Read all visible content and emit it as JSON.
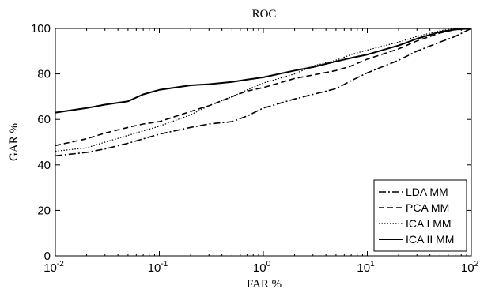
{
  "chart_data": {
    "type": "line",
    "title": "ROC",
    "xlabel": "FAR %",
    "ylabel": "GAR %",
    "xscale": "log",
    "xlim": [
      0.01,
      100
    ],
    "ylim": [
      0,
      100
    ],
    "x_ticks": [
      {
        "base": "10",
        "exp": "-2",
        "value": 0.01
      },
      {
        "base": "10",
        "exp": "-1",
        "value": 0.1
      },
      {
        "base": "10",
        "exp": "0",
        "value": 1
      },
      {
        "base": "10",
        "exp": "1",
        "value": 10
      },
      {
        "base": "10",
        "exp": "2",
        "value": 100
      }
    ],
    "y_ticks": [
      "0",
      "20",
      "40",
      "60",
      "80",
      "100"
    ],
    "grid": false,
    "legend_position": "bottom-right",
    "series": [
      {
        "name": "LDA MM",
        "dash": "dash-dot",
        "x": [
          0.01,
          0.02,
          0.03,
          0.05,
          0.1,
          0.2,
          0.3,
          0.5,
          0.7,
          1,
          2,
          3,
          5,
          7,
          10,
          20,
          30,
          50,
          70,
          100
        ],
        "y": [
          44,
          45.5,
          47,
          49.5,
          53.5,
          56.5,
          58,
          59,
          61.5,
          65,
          69,
          71,
          73.5,
          77,
          80.5,
          86,
          90,
          94,
          96.5,
          100
        ]
      },
      {
        "name": "PCA MM",
        "dash": "dash",
        "x": [
          0.01,
          0.02,
          0.03,
          0.05,
          0.07,
          0.1,
          0.2,
          0.3,
          0.5,
          0.7,
          1,
          2,
          3,
          5,
          7,
          10,
          20,
          30,
          50,
          70,
          100
        ],
        "y": [
          48.5,
          51.5,
          54,
          56.5,
          58,
          59,
          63.5,
          66,
          70,
          72.5,
          74,
          78,
          79.5,
          81.5,
          83.5,
          86.5,
          91,
          94.5,
          98,
          99.5,
          100
        ]
      },
      {
        "name": "ICA I MM",
        "dash": "dot",
        "x": [
          0.01,
          0.02,
          0.03,
          0.05,
          0.1,
          0.2,
          0.3,
          0.5,
          0.7,
          1,
          2,
          3,
          5,
          7,
          10,
          20,
          30,
          50,
          70,
          100
        ],
        "y": [
          46,
          47.5,
          50,
          53,
          57,
          62,
          66,
          70,
          73,
          76,
          80,
          83.5,
          86,
          88.5,
          90.5,
          94,
          96.5,
          99,
          100,
          100
        ]
      },
      {
        "name": "ICA II MM",
        "dash": "solid",
        "x": [
          0.01,
          0.02,
          0.03,
          0.05,
          0.07,
          0.1,
          0.2,
          0.3,
          0.5,
          0.7,
          1,
          2,
          3,
          5,
          7,
          10,
          20,
          30,
          50,
          70,
          100
        ],
        "y": [
          63,
          65,
          66.5,
          68,
          71,
          73,
          75,
          75.5,
          76.5,
          77.5,
          78.5,
          81.5,
          83,
          85.5,
          87,
          88.5,
          92.5,
          95.5,
          98.5,
          99.5,
          100
        ]
      }
    ]
  }
}
